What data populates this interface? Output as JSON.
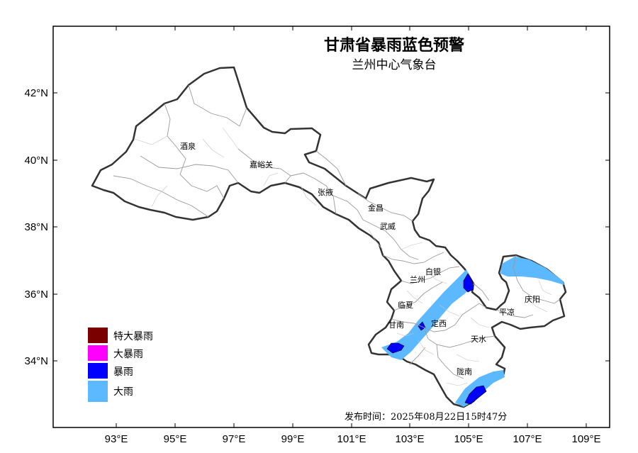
{
  "title": "甘肃省暴雨蓝色预警",
  "subtitle": "兰州中心气象台",
  "issue_time": "发布时间：2025年08月22日15时47分",
  "x_ticks": [
    "93°E",
    "95°E",
    "97°E",
    "99°E",
    "101°E",
    "103°E",
    "105°E",
    "107°E",
    "109°E"
  ],
  "y_ticks": [
    "42°N",
    "40°N",
    "38°N",
    "36°N",
    "34°N"
  ],
  "cities": [
    {
      "id": "jiuquan",
      "name": "酒泉"
    },
    {
      "id": "jiayuguan",
      "name": "嘉峪关"
    },
    {
      "id": "zhangye",
      "name": "张掖"
    },
    {
      "id": "jinchang",
      "name": "金昌"
    },
    {
      "id": "wuwei",
      "name": "武威"
    },
    {
      "id": "baiyin",
      "name": "白银"
    },
    {
      "id": "lanzhou",
      "name": "兰州"
    },
    {
      "id": "linxia",
      "name": "临夏"
    },
    {
      "id": "gannan",
      "name": "甘南"
    },
    {
      "id": "dingxi",
      "name": "定西"
    },
    {
      "id": "tianshui",
      "name": "天水"
    },
    {
      "id": "pingliang",
      "name": "平凉"
    },
    {
      "id": "qingyang",
      "name": "庆阳"
    },
    {
      "id": "longnan",
      "name": "陇南"
    }
  ],
  "legend": [
    {
      "label": "特大暴雨",
      "color": "#7a0000"
    },
    {
      "label": "大暴雨",
      "color": "#ff00ff"
    },
    {
      "label": "暴雨",
      "color": "#0000ff"
    },
    {
      "label": "大雨",
      "color": "#5cb8ff"
    }
  ]
}
